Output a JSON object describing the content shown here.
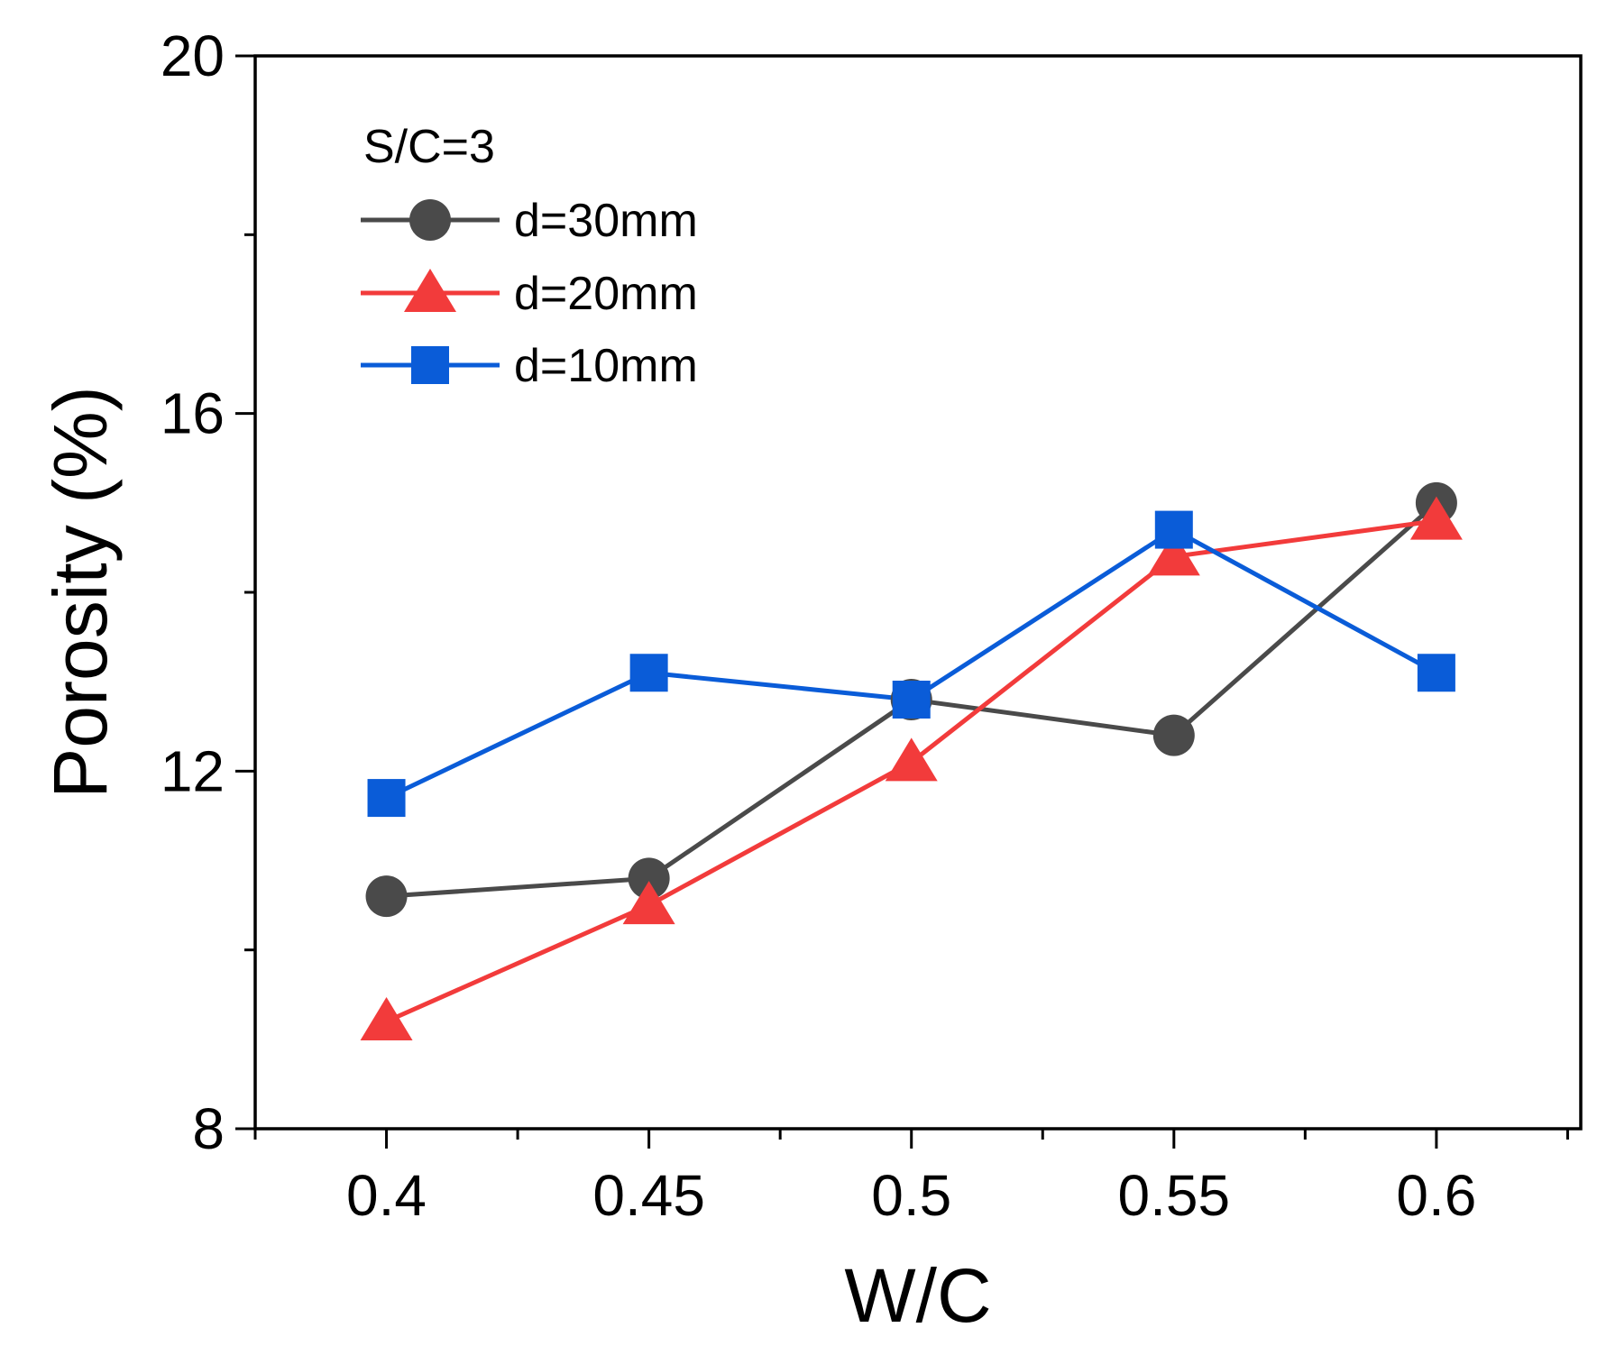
{
  "chart_data": {
    "type": "line",
    "title": "",
    "xlabel": "W/C",
    "ylabel": "Porosity (%)",
    "x": [
      0.4,
      0.45,
      0.5,
      0.55,
      0.6
    ],
    "x_tick_labels": [
      "0.4",
      "0.45",
      "0.5",
      "0.55",
      "0.6"
    ],
    "xlim": [
      0.375,
      0.6275
    ],
    "ylim": [
      8,
      20
    ],
    "y_ticks": [
      8,
      12,
      16,
      20
    ],
    "y_tick_labels": [
      "8",
      "12",
      "16",
      "20"
    ],
    "grid": false,
    "legend_title": "S/C=3",
    "legend_position": "top-left",
    "series": [
      {
        "name": "d=30mm",
        "marker": "circle",
        "color": "#4a4a4a",
        "values": [
          10.6,
          10.8,
          12.8,
          12.4,
          15.0
        ]
      },
      {
        "name": "d=20mm",
        "marker": "triangle",
        "color": "#f23b3b",
        "values": [
          9.2,
          10.5,
          12.1,
          14.4,
          14.8
        ]
      },
      {
        "name": "d=10mm",
        "marker": "square",
        "color": "#0a5cd8",
        "values": [
          11.7,
          13.1,
          12.8,
          14.7,
          13.1
        ]
      }
    ]
  }
}
